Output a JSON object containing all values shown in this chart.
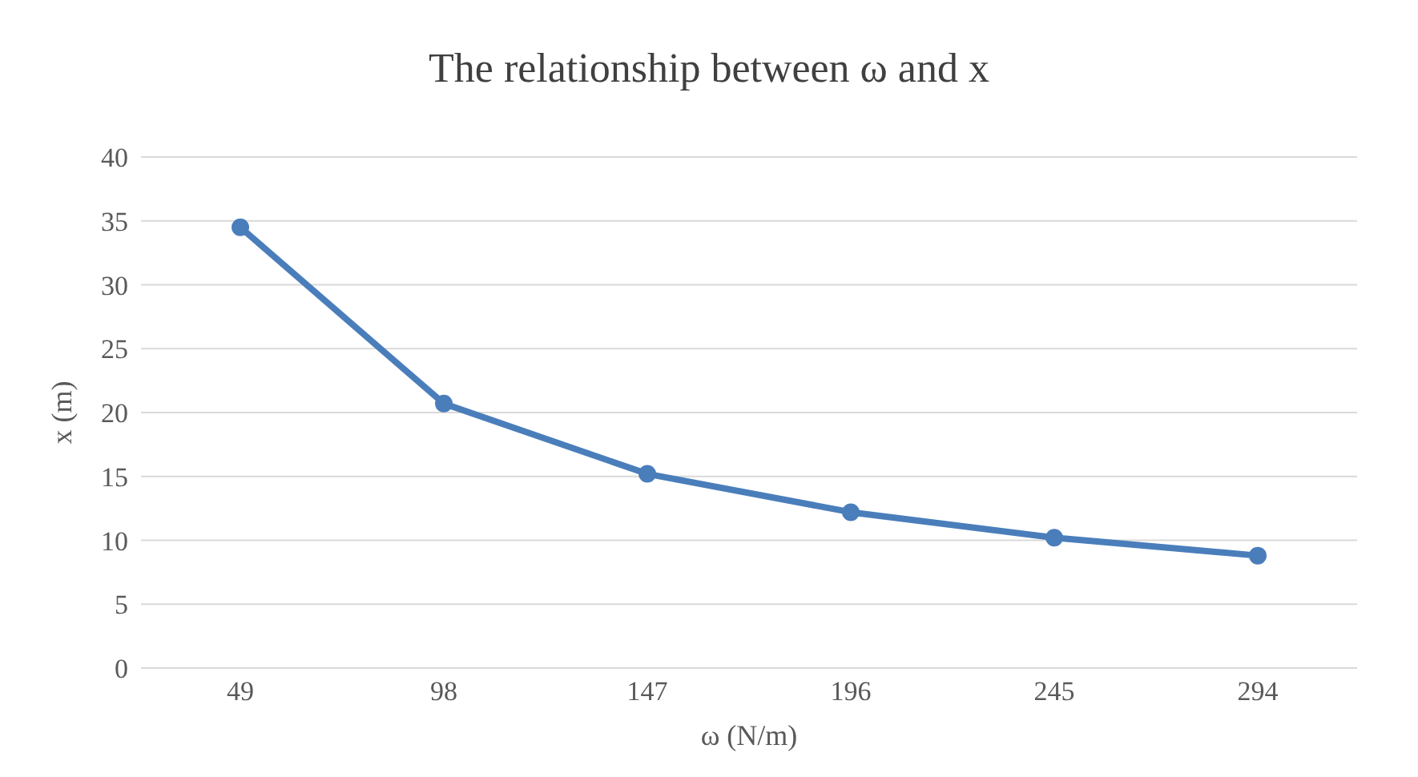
{
  "chart_data": {
    "type": "line",
    "title": "The relationship between ω and x",
    "xlabel": "ω (N/m)",
    "ylabel": "x (m)",
    "categories": [
      "49",
      "98",
      "147",
      "196",
      "245",
      "294"
    ],
    "series": [
      {
        "color": "#4a7ebb",
        "values": [
          34.5,
          20.7,
          15.2,
          12.2,
          10.2,
          8.8
        ]
      }
    ],
    "ylim": [
      0,
      40
    ],
    "yticks": [
      0,
      5,
      10,
      15,
      20,
      25,
      30,
      35,
      40
    ],
    "grid": "y",
    "marker": "circle",
    "legend": false
  }
}
